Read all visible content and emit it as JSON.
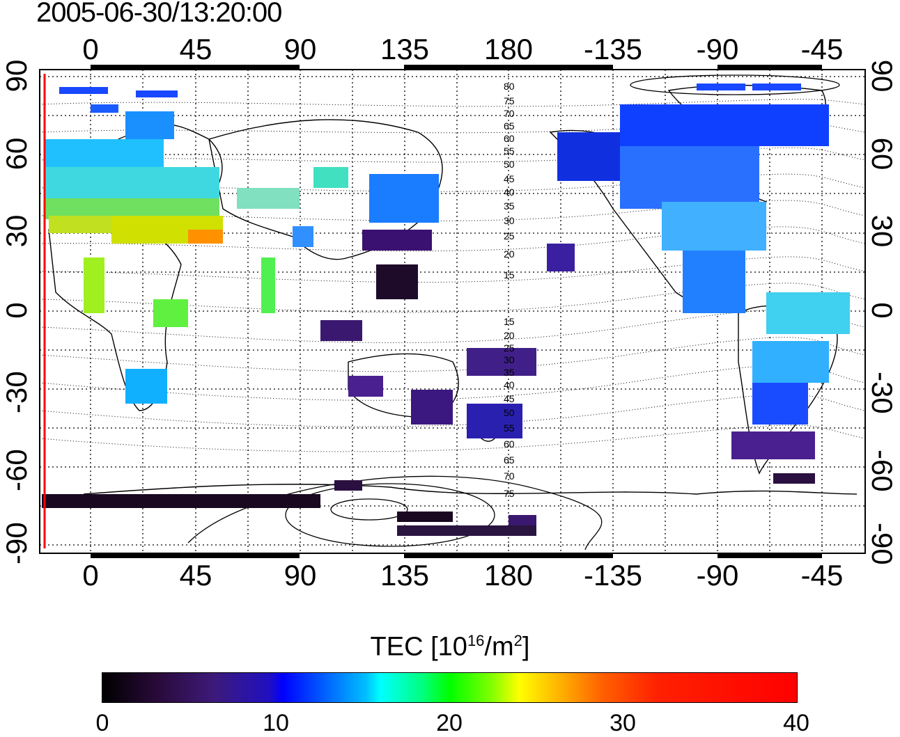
{
  "title": "2005-06-30/13:20:00",
  "axes": {
    "top_ticks": [
      "0",
      "45",
      "90",
      "135",
      "180",
      "-135",
      "-90",
      "-45"
    ],
    "bottom_ticks": [
      "0",
      "45",
      "90",
      "135",
      "180",
      "-135",
      "-90",
      "-45"
    ],
    "left_ticks": [
      "90",
      "60",
      "30",
      "0",
      "-30",
      "-60",
      "-90"
    ],
    "right_ticks": [
      "90",
      "60",
      "30",
      "0",
      "-30",
      "-60",
      "-90"
    ]
  },
  "contour_labels_north": [
    "80",
    "75",
    "70",
    "65",
    "60",
    "55",
    "50",
    "45",
    "40",
    "35",
    "30",
    "25",
    "20",
    "15"
  ],
  "contour_labels_south": [
    "15",
    "20",
    "25",
    "30",
    "35",
    "40",
    "45",
    "50",
    "55",
    "60",
    "65",
    "70",
    "75"
  ],
  "colorbar": {
    "title_main": "TEC  [10",
    "title_exp1": "16",
    "title_mid": "/m",
    "title_exp2": "2",
    "title_end": "]",
    "ticks": [
      "0",
      "10",
      "20",
      "30",
      "40"
    ],
    "range": [
      0,
      40
    ]
  },
  "colors": {
    "terminator_line": "#ff0000",
    "scale": [
      "#000000",
      "#3d1a7a",
      "#0000ff",
      "#00ffff",
      "#00ff00",
      "#ffff00",
      "#ff0000"
    ]
  }
}
